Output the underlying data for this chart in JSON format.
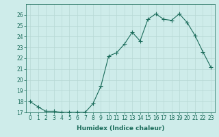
{
  "x": [
    0,
    1,
    2,
    3,
    4,
    5,
    6,
    7,
    8,
    9,
    10,
    11,
    12,
    13,
    14,
    15,
    16,
    17,
    18,
    19,
    20,
    21,
    22,
    23
  ],
  "y": [
    18.0,
    17.5,
    17.1,
    17.1,
    17.0,
    17.0,
    17.0,
    17.0,
    17.8,
    19.4,
    22.2,
    22.5,
    23.3,
    24.4,
    23.6,
    25.6,
    26.1,
    25.6,
    25.5,
    26.1,
    25.3,
    24.1,
    22.6,
    21.2
  ],
  "line_color": "#1a6b5a",
  "marker": "+",
  "marker_size": 4,
  "bg_color": "#ceecea",
  "grid_color": "#b8d8d5",
  "xlabel": "Humidex (Indice chaleur)",
  "xlim": [
    -0.5,
    23.5
  ],
  "ylim": [
    17,
    27
  ],
  "yticks": [
    17,
    18,
    19,
    20,
    21,
    22,
    23,
    24,
    25,
    26
  ],
  "xticks": [
    0,
    1,
    2,
    3,
    4,
    5,
    6,
    7,
    8,
    9,
    10,
    11,
    12,
    13,
    14,
    15,
    16,
    17,
    18,
    19,
    20,
    21,
    22,
    23
  ],
  "tick_label_fontsize": 5.5,
  "xlabel_fontsize": 6.5
}
